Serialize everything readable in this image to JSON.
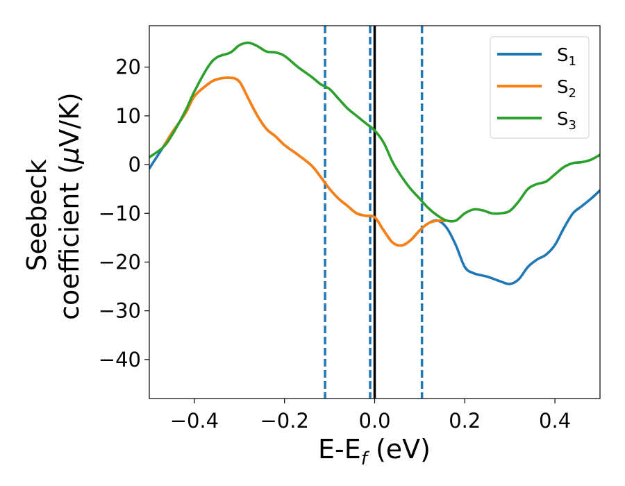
{
  "chart_data": {
    "type": "line",
    "xlabel": {
      "main": "E-E",
      "sub": "f",
      "unit": " (eV)"
    },
    "ylabel": {
      "line1": "Seebeck",
      "line2": "coefficient  (",
      "mu": "μ",
      "line2_end": "V/K)"
    },
    "xlim": [
      -0.5,
      0.5
    ],
    "ylim": [
      -48,
      28.5
    ],
    "xticks": [
      -0.4,
      -0.2,
      0.0,
      0.2,
      0.4
    ],
    "xtick_labels": [
      "−0.4",
      "−0.2",
      "0.0",
      "0.2",
      "0.4"
    ],
    "yticks": [
      20,
      10,
      0,
      -10,
      -20,
      -30,
      -40
    ],
    "ytick_labels": [
      "20",
      "10",
      "0",
      "−10",
      "−20",
      "−30",
      "−40"
    ],
    "grid": false,
    "legend_position": "top-right",
    "colors": {
      "s1": "#1f77b4",
      "s2": "#ff7f0e",
      "s3": "#2ca02c",
      "fermi": "#000000"
    },
    "vertical_lines": [
      {
        "x": -0.11,
        "style": "dashed",
        "color": "#1f77b4"
      },
      {
        "x": -0.01,
        "style": "dashed",
        "color": "#1f77b4"
      },
      {
        "x": 0.0,
        "style": "solid",
        "color": "#000000"
      },
      {
        "x": 0.105,
        "style": "dashed",
        "color": "#1f77b4"
      }
    ],
    "series": [
      {
        "name": "S",
        "sub": "1",
        "color": "#1f77b4",
        "x": [
          -0.5,
          -0.47,
          -0.45,
          -0.42,
          -0.4,
          -0.37,
          -0.35,
          -0.32,
          -0.3,
          -0.28,
          -0.26,
          -0.24,
          -0.22,
          -0.2,
          -0.17,
          -0.14,
          -0.12,
          -0.1,
          -0.08,
          -0.06,
          -0.04,
          -0.02,
          0.0,
          0.02,
          0.04,
          0.06,
          0.08,
          0.1,
          0.12,
          0.14,
          0.16,
          0.18,
          0.2,
          0.22,
          0.25,
          0.28,
          0.3,
          0.32,
          0.34,
          0.36,
          0.38,
          0.4,
          0.42,
          0.44,
          0.46,
          0.48,
          0.5
        ],
        "y": [
          -0.8,
          3.5,
          6.5,
          10.5,
          14.0,
          16.5,
          17.5,
          17.8,
          17.0,
          13.5,
          10.0,
          7.3,
          5.8,
          4.0,
          2.0,
          -0.2,
          -2.5,
          -5.0,
          -7.0,
          -8.5,
          -10.0,
          -10.5,
          -10.8,
          -13.5,
          -16.0,
          -16.6,
          -15.5,
          -13.5,
          -12.0,
          -11.5,
          -13.0,
          -16.5,
          -21.0,
          -22.3,
          -23.0,
          -24.0,
          -24.5,
          -23.5,
          -21.0,
          -19.5,
          -18.5,
          -16.5,
          -13.0,
          -10.0,
          -8.5,
          -7.0,
          -5.3
        ]
      },
      {
        "name": "S",
        "sub": "2",
        "color": "#ff7f0e",
        "x": [
          -0.47,
          -0.45,
          -0.42,
          -0.4,
          -0.37,
          -0.35,
          -0.32,
          -0.3,
          -0.28,
          -0.26,
          -0.24,
          -0.22,
          -0.2,
          -0.17,
          -0.14,
          -0.12,
          -0.1,
          -0.08,
          -0.06,
          -0.04,
          -0.02,
          0.0,
          0.02,
          0.04,
          0.06,
          0.08,
          0.1,
          0.12,
          0.14,
          0.155
        ],
        "y": [
          3.5,
          6.5,
          10.5,
          14.0,
          16.5,
          17.5,
          17.8,
          17.0,
          13.5,
          10.0,
          7.3,
          5.8,
          4.0,
          2.0,
          -0.2,
          -2.5,
          -5.0,
          -7.0,
          -8.5,
          -10.0,
          -10.5,
          -10.8,
          -13.5,
          -16.0,
          -16.6,
          -15.5,
          -13.5,
          -12.0,
          -11.5,
          -11.6
        ]
      },
      {
        "name": "S",
        "sub": "3",
        "color": "#2ca02c",
        "x": [
          -0.5,
          -0.47,
          -0.45,
          -0.42,
          -0.4,
          -0.37,
          -0.35,
          -0.32,
          -0.3,
          -0.28,
          -0.26,
          -0.24,
          -0.22,
          -0.2,
          -0.17,
          -0.14,
          -0.12,
          -0.1,
          -0.08,
          -0.06,
          -0.04,
          -0.02,
          0.0,
          0.02,
          0.04,
          0.06,
          0.08,
          0.1,
          0.12,
          0.14,
          0.16,
          0.18,
          0.2,
          0.22,
          0.24,
          0.26,
          0.28,
          0.3,
          0.32,
          0.34,
          0.36,
          0.38,
          0.4,
          0.42,
          0.44,
          0.46,
          0.48,
          0.5
        ],
        "y": [
          1.5,
          3.5,
          6.0,
          11.0,
          15.0,
          20.0,
          22.0,
          23.0,
          24.5,
          25.0,
          24.3,
          23.2,
          23.0,
          22.3,
          20.0,
          18.0,
          16.5,
          15.5,
          13.5,
          11.5,
          10.0,
          8.5,
          7.0,
          4.5,
          0.5,
          -2.5,
          -5.0,
          -7.0,
          -9.0,
          -10.5,
          -11.5,
          -11.5,
          -10.0,
          -9.2,
          -9.4,
          -10.0,
          -10.0,
          -9.5,
          -7.5,
          -5.0,
          -4.0,
          -3.5,
          -2.0,
          -0.5,
          0.3,
          0.5,
          1.0,
          2.0
        ]
      }
    ]
  }
}
